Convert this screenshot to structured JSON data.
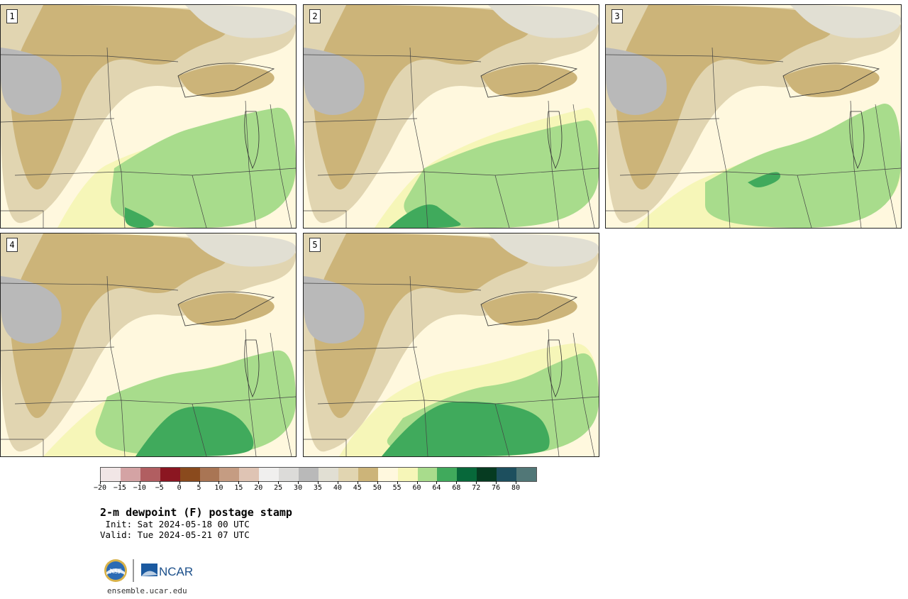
{
  "panels": [
    {
      "label": "1",
      "variant": 0
    },
    {
      "label": "2",
      "variant": 1
    },
    {
      "label": "3",
      "variant": 2
    },
    {
      "label": "4",
      "variant": 3
    },
    {
      "label": "5",
      "variant": 4
    }
  ],
  "colorbar": {
    "ticks": [
      "−20",
      "−15",
      "−10",
      "−5",
      "0",
      "5",
      "10",
      "15",
      "20",
      "25",
      "30",
      "35",
      "40",
      "45",
      "50",
      "55",
      "60",
      "64",
      "68",
      "72",
      "76",
      "80"
    ],
    "colors": [
      "#f1e6e6",
      "#d4a3a4",
      "#b15e61",
      "#8b1621",
      "#8a4a1d",
      "#a97554",
      "#c59c82",
      "#dfc4b4",
      "#f0efee",
      "#dcdbd9",
      "#b9b9b9",
      "#e1dfd3",
      "#e1d5b1",
      "#ccb479",
      "#fff8de",
      "#f6f6b8",
      "#a8dc8c",
      "#40aa5c",
      "#07683a",
      "#063b21",
      "#1d4f5e",
      "#517777"
    ]
  },
  "title": "2-m dewpoint (F) postage stamp",
  "init": " Init: Sat 2024-05-18 00 UTC",
  "valid": "Valid: Tue 2024-05-21 07 UTC",
  "logo": {
    "nsf": "NSF",
    "ncar": "NCAR"
  },
  "site": "ensemble.ucar.edu"
}
